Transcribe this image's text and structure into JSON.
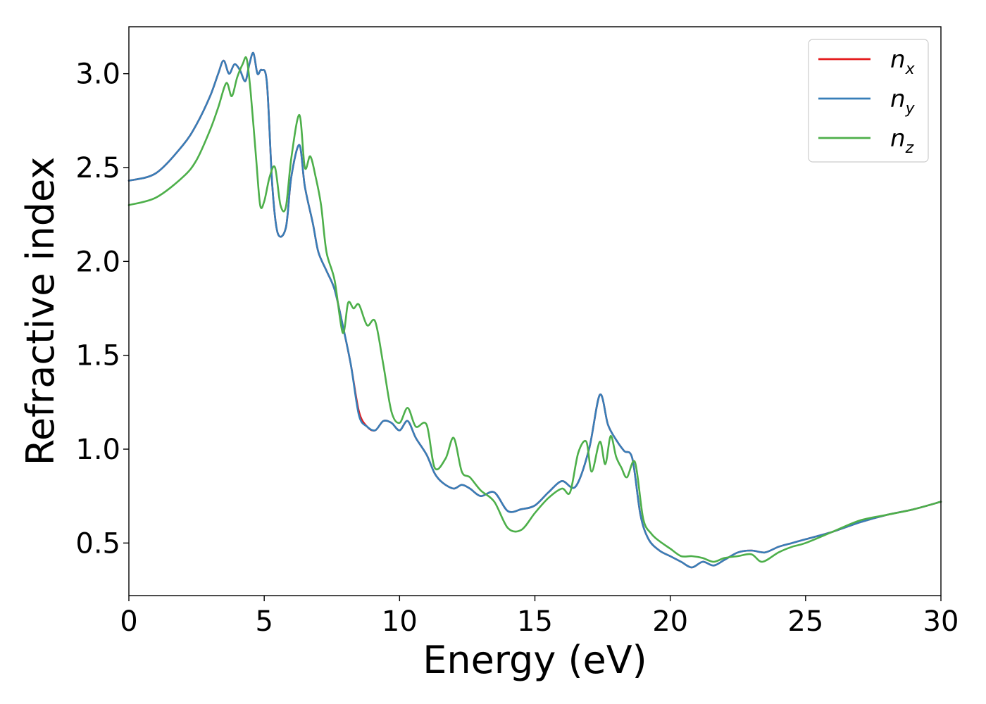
{
  "chart_data": {
    "type": "line",
    "title": "",
    "xlabel": "Energy (eV)",
    "ylabel": "Refractive index",
    "xlim": [
      0,
      30
    ],
    "ylim": [
      0.22,
      3.25
    ],
    "xticks": [
      0,
      5,
      10,
      15,
      20,
      25,
      30
    ],
    "xtick_labels": [
      "0",
      "5",
      "10",
      "15",
      "20",
      "25",
      "30"
    ],
    "yticks": [
      0.5,
      1.0,
      1.5,
      2.0,
      2.5,
      3.0
    ],
    "ytick_labels": [
      "0.5",
      "1.0",
      "1.5",
      "2.0",
      "2.5",
      "3.0"
    ],
    "grid": false,
    "legend_position": "top-right",
    "colors": {
      "n_x": "#e41a1c",
      "n_y": "#377eb8",
      "n_z": "#4daf4a"
    },
    "series": [
      {
        "name": "n_x",
        "label_base": "n",
        "label_sub": "x",
        "x": [
          0,
          1,
          2,
          2.5,
          3,
          3.3,
          3.5,
          3.7,
          3.9,
          4.1,
          4.3,
          4.45,
          4.6,
          4.75,
          4.9,
          5.1,
          5.3,
          5.5,
          5.8,
          6.0,
          6.3,
          6.5,
          6.8,
          7.0,
          7.3,
          7.6,
          7.9,
          8.2,
          8.5,
          8.8,
          9.1,
          9.4,
          9.7,
          10.0,
          10.3,
          10.6,
          11.0,
          11.3,
          11.6,
          12.0,
          12.3,
          12.6,
          13.0,
          13.5,
          14.0,
          14.5,
          15.0,
          15.5,
          16.0,
          16.5,
          17.0,
          17.4,
          17.7,
          18.0,
          18.3,
          18.6,
          18.9,
          19.2,
          19.6,
          20.0,
          20.4,
          20.8,
          21.2,
          21.6,
          22.0,
          22.5,
          23.0,
          23.5,
          24.0,
          24.5,
          25.0,
          26.0,
          27.0,
          28.0,
          29.0,
          30.0
        ],
        "y": [
          2.43,
          2.47,
          2.62,
          2.73,
          2.88,
          3.0,
          3.07,
          3.0,
          3.05,
          3.02,
          2.96,
          3.05,
          3.11,
          3.0,
          3.02,
          2.95,
          2.4,
          2.15,
          2.18,
          2.45,
          2.62,
          2.4,
          2.2,
          2.05,
          1.95,
          1.85,
          1.66,
          1.45,
          1.2,
          1.12,
          1.1,
          1.15,
          1.14,
          1.1,
          1.15,
          1.06,
          0.97,
          0.87,
          0.82,
          0.79,
          0.81,
          0.79,
          0.75,
          0.77,
          0.67,
          0.68,
          0.7,
          0.77,
          0.83,
          0.8,
          1.0,
          1.29,
          1.13,
          1.05,
          0.99,
          0.95,
          0.65,
          0.52,
          0.46,
          0.43,
          0.4,
          0.37,
          0.4,
          0.38,
          0.41,
          0.45,
          0.46,
          0.45,
          0.48,
          0.5,
          0.52,
          0.56,
          0.61,
          0.65,
          0.68,
          0.72
        ]
      },
      {
        "name": "n_y",
        "label_base": "n",
        "label_sub": "y",
        "x": [
          0,
          1,
          2,
          2.5,
          3,
          3.3,
          3.5,
          3.7,
          3.9,
          4.1,
          4.3,
          4.45,
          4.6,
          4.75,
          4.9,
          5.1,
          5.3,
          5.5,
          5.8,
          6.0,
          6.3,
          6.5,
          6.8,
          7.0,
          7.3,
          7.6,
          7.9,
          8.2,
          8.5,
          8.8,
          9.1,
          9.4,
          9.7,
          10.0,
          10.3,
          10.6,
          11.0,
          11.3,
          11.6,
          12.0,
          12.3,
          12.6,
          13.0,
          13.5,
          14.0,
          14.5,
          15.0,
          15.5,
          16.0,
          16.5,
          17.0,
          17.4,
          17.7,
          18.0,
          18.3,
          18.6,
          18.9,
          19.2,
          19.6,
          20.0,
          20.4,
          20.8,
          21.2,
          21.6,
          22.0,
          22.5,
          23.0,
          23.5,
          24.0,
          24.5,
          25.0,
          26.0,
          27.0,
          28.0,
          29.0,
          30.0
        ],
        "y": [
          2.43,
          2.47,
          2.62,
          2.73,
          2.88,
          3.0,
          3.07,
          3.0,
          3.05,
          3.02,
          2.96,
          3.05,
          3.11,
          3.0,
          3.02,
          2.95,
          2.4,
          2.15,
          2.18,
          2.45,
          2.62,
          2.4,
          2.2,
          2.05,
          1.95,
          1.85,
          1.66,
          1.45,
          1.18,
          1.12,
          1.1,
          1.15,
          1.14,
          1.1,
          1.15,
          1.06,
          0.97,
          0.87,
          0.82,
          0.79,
          0.81,
          0.79,
          0.75,
          0.77,
          0.67,
          0.68,
          0.7,
          0.77,
          0.83,
          0.8,
          1.0,
          1.29,
          1.13,
          1.05,
          0.99,
          0.95,
          0.65,
          0.52,
          0.46,
          0.43,
          0.4,
          0.37,
          0.4,
          0.38,
          0.41,
          0.45,
          0.46,
          0.45,
          0.48,
          0.5,
          0.52,
          0.56,
          0.61,
          0.65,
          0.68,
          0.72
        ]
      },
      {
        "name": "n_z",
        "label_base": "n",
        "label_sub": "z",
        "x": [
          0,
          1,
          2,
          2.5,
          3,
          3.3,
          3.6,
          3.8,
          4.0,
          4.2,
          4.35,
          4.5,
          4.7,
          4.85,
          5.0,
          5.2,
          5.4,
          5.6,
          5.8,
          6.0,
          6.3,
          6.5,
          6.7,
          6.9,
          7.1,
          7.3,
          7.6,
          7.9,
          8.1,
          8.3,
          8.5,
          8.8,
          9.1,
          9.4,
          9.7,
          10.0,
          10.3,
          10.6,
          11.0,
          11.3,
          11.7,
          12.0,
          12.3,
          12.6,
          13.0,
          13.5,
          14.0,
          14.5,
          15.0,
          15.5,
          16.0,
          16.3,
          16.6,
          16.9,
          17.1,
          17.4,
          17.6,
          17.8,
          18.0,
          18.2,
          18.4,
          18.7,
          19.0,
          19.3,
          19.6,
          20.0,
          20.4,
          20.8,
          21.2,
          21.6,
          22.0,
          22.5,
          23.0,
          23.4,
          24.0,
          24.5,
          25.0,
          26.0,
          27.0,
          28.0,
          29.0,
          30.0
        ],
        "y": [
          2.3,
          2.34,
          2.45,
          2.54,
          2.7,
          2.82,
          2.95,
          2.88,
          2.98,
          3.05,
          3.08,
          2.9,
          2.55,
          2.3,
          2.32,
          2.45,
          2.5,
          2.3,
          2.29,
          2.55,
          2.78,
          2.5,
          2.56,
          2.45,
          2.3,
          2.05,
          1.9,
          1.62,
          1.78,
          1.75,
          1.77,
          1.66,
          1.68,
          1.45,
          1.2,
          1.14,
          1.22,
          1.12,
          1.13,
          0.9,
          0.95,
          1.06,
          0.88,
          0.85,
          0.78,
          0.72,
          0.58,
          0.57,
          0.66,
          0.74,
          0.79,
          0.77,
          0.98,
          1.04,
          0.88,
          1.04,
          0.92,
          1.07,
          0.96,
          0.9,
          0.85,
          0.93,
          0.63,
          0.55,
          0.51,
          0.47,
          0.43,
          0.43,
          0.42,
          0.4,
          0.42,
          0.43,
          0.44,
          0.4,
          0.45,
          0.48,
          0.5,
          0.56,
          0.62,
          0.65,
          0.68,
          0.72
        ]
      }
    ]
  }
}
